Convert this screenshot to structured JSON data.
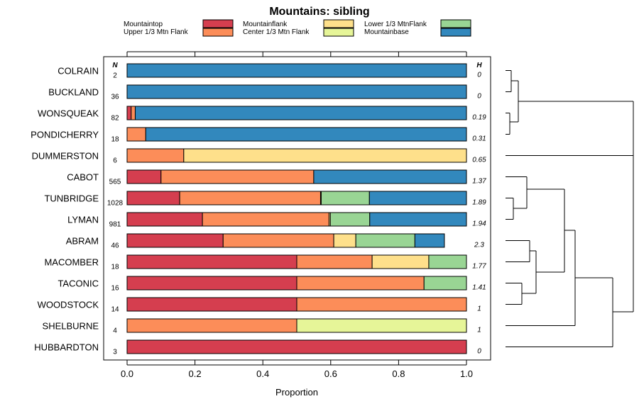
{
  "chart_data": {
    "type": "bar",
    "orientation": "horizontal",
    "stacked": true,
    "title": "Mountains: sibling",
    "xlabel": "Proportion",
    "xlim": [
      0,
      1
    ],
    "xticks": [
      "0.0",
      "0.2",
      "0.4",
      "0.6",
      "0.8",
      "1.0"
    ],
    "n_header": "N",
    "h_header": "H",
    "categories": [
      "COLRAIN",
      "BUCKLAND",
      "WONSQUEAK",
      "PONDICHERRY",
      "DUMMERSTON",
      "CABOT",
      "TUNBRIDGE",
      "LYMAN",
      "ABRAM",
      "MACOMBER",
      "TACONIC",
      "WOODSTOCK",
      "SHELBURNE",
      "HUBBARDTON"
    ],
    "n_values": [
      "2",
      "36",
      "82",
      "18",
      "6",
      "565",
      "1028",
      "981",
      "46",
      "18",
      "16",
      "14",
      "4",
      "3"
    ],
    "h_values": [
      "0",
      "0",
      "0.19",
      "0.31",
      "0.65",
      "1.37",
      "1.89",
      "1.94",
      "2.3",
      "1.77",
      "1.41",
      "1",
      "1",
      "0"
    ],
    "series": [
      {
        "name": "Mountaintop",
        "color": "#d53e4f",
        "values": [
          0,
          0,
          0.012,
          0,
          0,
          0.1,
          0.155,
          0.222,
          0.283,
          0.5,
          0.5,
          0.5,
          0,
          1
        ]
      },
      {
        "name": "Upper 1/3 Mtn Flank",
        "color": "#fc8d59",
        "values": [
          0,
          0,
          0.012,
          0.055,
          0.167,
          0.45,
          0.415,
          0.373,
          0.326,
          0.222,
          0.375,
          0.5,
          0.5,
          0
        ]
      },
      {
        "name": "Mountainflank",
        "color": "#fee08b",
        "values": [
          0,
          0,
          0,
          0,
          0.833,
          0,
          0.002,
          0.004,
          0.065,
          0.167,
          0,
          0,
          0,
          0
        ]
      },
      {
        "name": "Center 1/3 Mtn Flank",
        "color": "#e6f598",
        "values": [
          0,
          0,
          0,
          0,
          0,
          0,
          0,
          0,
          0,
          0,
          0,
          0,
          0.5,
          0
        ]
      },
      {
        "name": "Lower 1/3 MtnFlank",
        "color": "#99d594",
        "values": [
          0,
          0,
          0,
          0,
          0,
          0,
          0.142,
          0.116,
          0.174,
          0.111,
          0.125,
          0,
          0,
          0
        ]
      },
      {
        "name": "Mountainbase",
        "color": "#3288bd",
        "values": [
          1,
          1,
          0.976,
          0.945,
          0,
          0.45,
          0.286,
          0.285,
          0.087,
          0,
          0,
          0,
          0,
          0
        ]
      }
    ],
    "legend_position": "top",
    "dendrogram": "right"
  }
}
